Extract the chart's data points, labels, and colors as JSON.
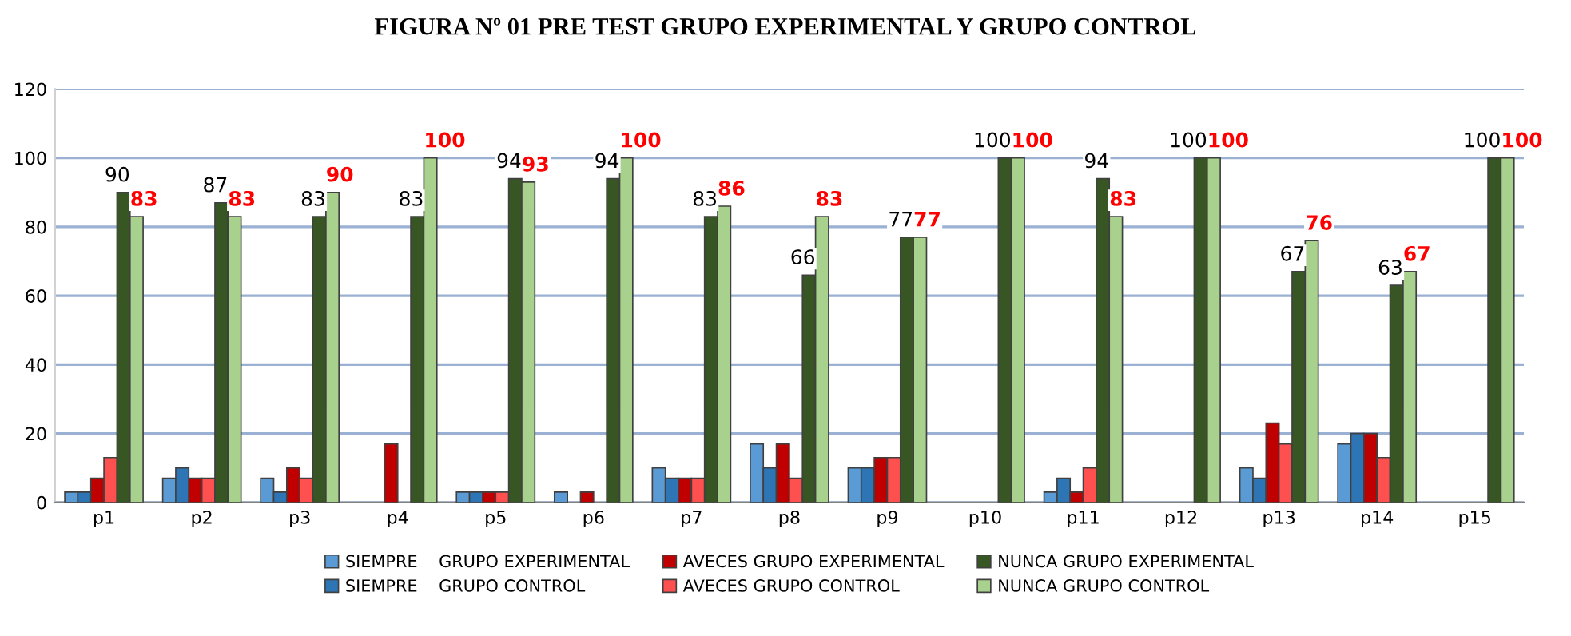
{
  "chart_data": {
    "type": "bar",
    "title": "FIGURA Nº 01 PRE TEST GRUPO EXPERIMENTAL Y GRUPO CONTROL",
    "categories": [
      "p1",
      "p2",
      "p3",
      "p4",
      "p5",
      "p6",
      "p7",
      "p8",
      "p9",
      "p10",
      "p11",
      "p12",
      "p13",
      "p14",
      "p15"
    ],
    "series": [
      {
        "name": "SIEMPRE    GRUPO EXPERIMENTAL",
        "color": "#5b9bd5",
        "values": [
          3,
          7,
          7,
          0,
          3,
          3,
          10,
          17,
          10,
          0,
          3,
          0,
          10,
          17,
          0
        ]
      },
      {
        "name": "SIEMPRE    GRUPO CONTROL",
        "color": "#2e75b6",
        "values": [
          3,
          10,
          3,
          0,
          3,
          0,
          7,
          10,
          10,
          0,
          7,
          0,
          7,
          20,
          0
        ]
      },
      {
        "name": "AVECES GRUPO EXPERIMENTAL",
        "color": "#c00000",
        "values": [
          7,
          7,
          10,
          17,
          3,
          3,
          7,
          17,
          13,
          0,
          3,
          0,
          23,
          20,
          0
        ]
      },
      {
        "name": "AVECES GRUPO CONTROL",
        "color": "#ff5050",
        "values": [
          13,
          7,
          7,
          0,
          3,
          0,
          7,
          7,
          13,
          0,
          10,
          0,
          17,
          13,
          0
        ]
      },
      {
        "name": "NUNCA GRUPO EXPERIMENTAL",
        "color": "#375623",
        "values": [
          90,
          87,
          83,
          83,
          94,
          94,
          83,
          66,
          77,
          100,
          94,
          100,
          67,
          63,
          100
        ],
        "value_labels": [
          "90",
          "87",
          "83",
          "83",
          "94",
          "94",
          "83",
          "66",
          "77",
          "100",
          "94",
          "100",
          "67",
          "63",
          "100"
        ]
      },
      {
        "name": "NUNCA GRUPO CONTROL",
        "color": "#a9d18e",
        "values": [
          83,
          83,
          90,
          100,
          93,
          100,
          86,
          83,
          77,
          100,
          83,
          100,
          76,
          67,
          100
        ],
        "value_labels": [
          "83",
          "83",
          "90",
          "100",
          "93",
          "100",
          "86",
          "83",
          "77",
          "100",
          "83",
          "100",
          "76",
          "67",
          "100"
        ]
      }
    ],
    "ylim": [
      0,
      120
    ],
    "yticks": [
      0,
      20,
      40,
      60,
      80,
      100,
      120
    ],
    "grid": "y",
    "legend": "bottom"
  }
}
